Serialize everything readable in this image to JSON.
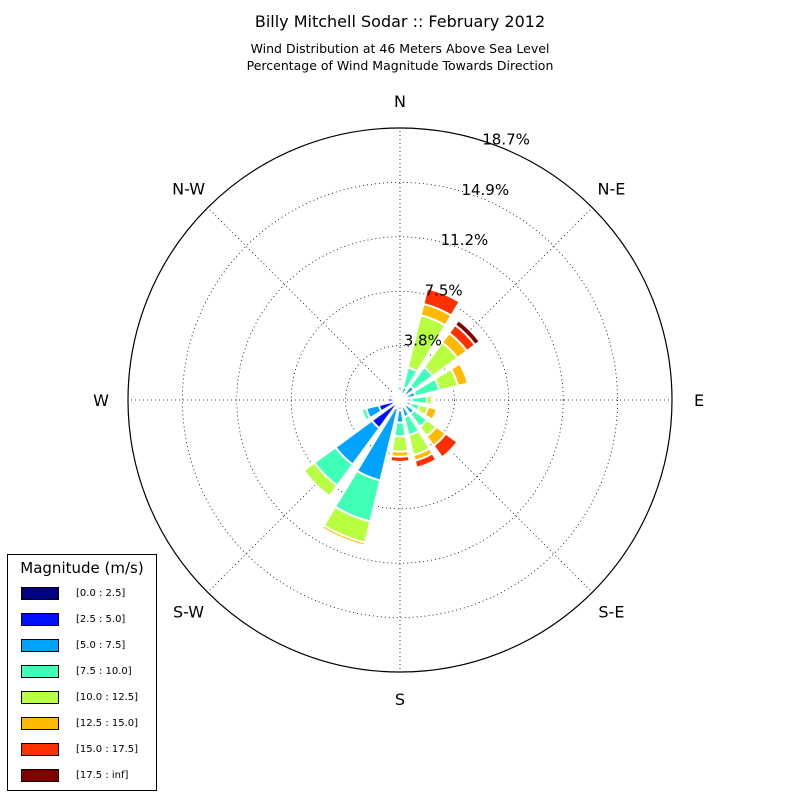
{
  "chart_data": {
    "type": "windrose",
    "title": "Billy Mitchell Sodar :: February 2012",
    "subtitle_lines": [
      "Wind Distribution at 46 Meters Above Sea Level",
      "Percentage of Wind Magnitude Towards Direction"
    ],
    "direction_labels": [
      "N",
      "N-E",
      "E",
      "S-E",
      "S",
      "S-W",
      "W",
      "N-W"
    ],
    "radial_tick_labels": [
      "3.8%",
      "7.5%",
      "11.2%",
      "14.9%",
      "18.7%"
    ],
    "radial_ticks": [
      3.74,
      7.48,
      11.22,
      14.96,
      18.7
    ],
    "r_max": 18.7,
    "grid": true,
    "legend": {
      "title": "Magnitude (m/s)",
      "placement": "lower-left",
      "entries": [
        {
          "label": "[0.0 : 2.5]",
          "color": "#000080"
        },
        {
          "label": "[2.5 : 5.0]",
          "color": "#0010ff"
        },
        {
          "label": "[5.0 : 7.5]",
          "color": "#00a4ff"
        },
        {
          "label": "[7.5 : 10.0]",
          "color": "#40ffb7"
        },
        {
          "label": "[10.0 : 12.5]",
          "color": "#b7ff40"
        },
        {
          "label": "[12.5 : 15.0]",
          "color": "#ffb900"
        },
        {
          "label": "[15.0 : 17.5]",
          "color": "#ff3000"
        },
        {
          "label": "[17.5 : inf]",
          "color": "#800000"
        }
      ]
    },
    "sector_width_deg": 22.5,
    "directions_deg": [
      0,
      22.5,
      45,
      67.5,
      90,
      112.5,
      135,
      157.5,
      180,
      202.5,
      225,
      247.5,
      270,
      292.5,
      315,
      337.5
    ],
    "cumulative_percent": [
      [
        0.05,
        0.25,
        0.6,
        0.95,
        1.15,
        1.2,
        1.2,
        1.2
      ],
      [
        0.05,
        0.4,
        0.9,
        2.3,
        6.0,
        6.8,
        7.9,
        7.9
      ],
      [
        0.05,
        0.5,
        1.2,
        2.8,
        4.9,
        5.7,
        6.4,
        6.8
      ],
      [
        0.05,
        0.5,
        1.1,
        2.8,
        4.1,
        4.8,
        4.8,
        4.8
      ],
      [
        0.05,
        0.4,
        0.8,
        1.85,
        2.2,
        2.25,
        2.25,
        2.25
      ],
      [
        0.05,
        0.4,
        0.8,
        1.4,
        2.0,
        2.6,
        2.6,
        2.6
      ],
      [
        0.05,
        0.5,
        1.2,
        2.3,
        3.1,
        3.9,
        4.9,
        5.0
      ],
      [
        0.05,
        0.5,
        1.2,
        2.5,
        3.9,
        4.3,
        4.8,
        4.9
      ],
      [
        0.05,
        0.7,
        1.55,
        2.5,
        3.55,
        3.9,
        4.25,
        4.25
      ],
      [
        0.05,
        0.6,
        5.7,
        8.6,
        10.1,
        10.3,
        10.3,
        10.3
      ],
      [
        0.05,
        2.4,
        5.5,
        7.3,
        8.2,
        8.2,
        8.2,
        8.2
      ],
      [
        0.05,
        1.5,
        2.4,
        2.7,
        2.7,
        2.7,
        2.7,
        2.7
      ],
      [
        0.05,
        0.85,
        0.9,
        0.9,
        0.9,
        0.9,
        0.9,
        0.9
      ],
      [
        0.05,
        0.6,
        0.8,
        0.8,
        0.8,
        0.8,
        0.8,
        0.8
      ],
      [
        0.05,
        0.35,
        0.55,
        0.55,
        0.55,
        0.55,
        0.55,
        0.55
      ],
      [
        0.05,
        0.3,
        0.5,
        0.6,
        0.7,
        0.7,
        0.7,
        0.7
      ]
    ]
  }
}
